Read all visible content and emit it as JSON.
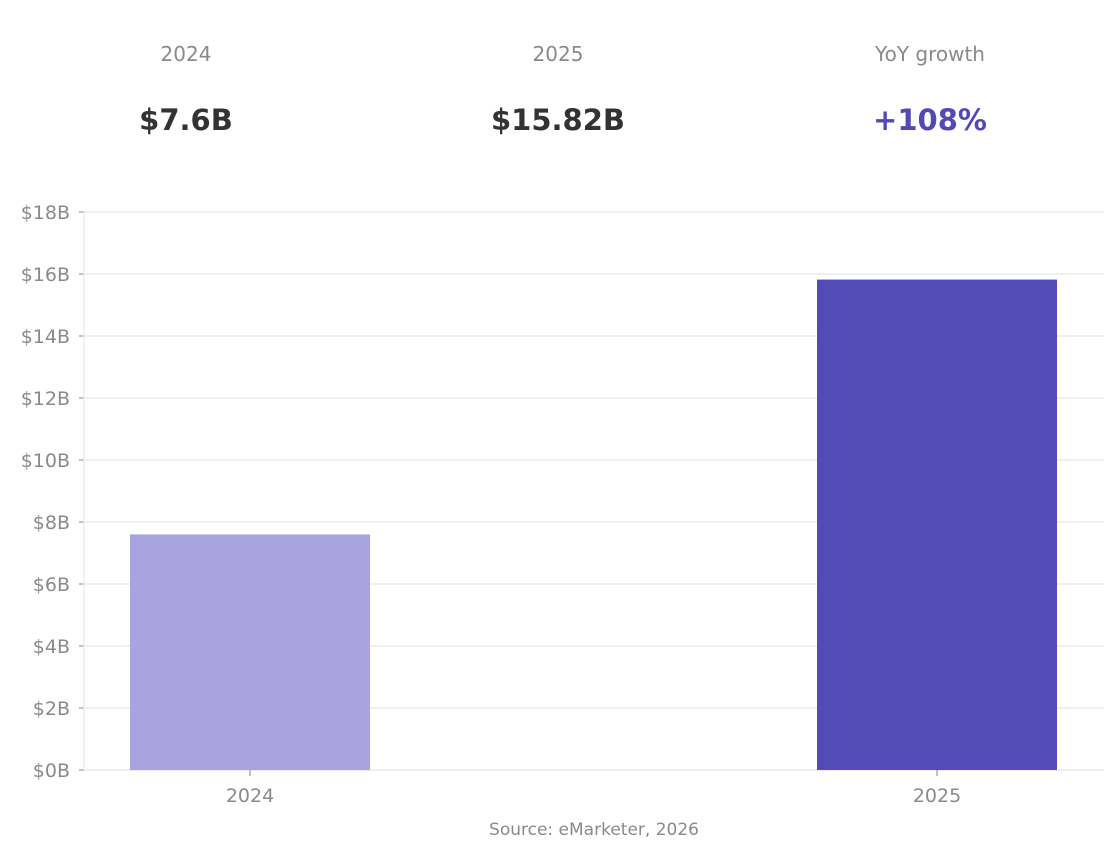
{
  "kpis": [
    {
      "label": "2024",
      "value": "$7.6B"
    },
    {
      "label": "2025",
      "value": "$15.82B"
    },
    {
      "label": "YoY growth",
      "value": "+108%"
    }
  ],
  "colors": {
    "bar_2024": "#a9a4df",
    "bar_2025": "#534bb6",
    "accent": "#5349b6",
    "grid": "#ebebeb",
    "text_muted": "#8a8a8a"
  },
  "chart_data": {
    "type": "bar",
    "categories": [
      "2024",
      "2025"
    ],
    "values": [
      7.6,
      15.82
    ],
    "ylim": [
      0,
      18
    ],
    "yticks": [
      0,
      2,
      4,
      6,
      8,
      10,
      12,
      14,
      16,
      18
    ],
    "ytick_labels": [
      "$0B",
      "$2B",
      "$4B",
      "$6B",
      "$8B",
      "$10B",
      "$12B",
      "$14B",
      "$16B",
      "$18B"
    ],
    "grid": true,
    "legend": "none"
  },
  "source": "Source: eMarketer, 2026"
}
